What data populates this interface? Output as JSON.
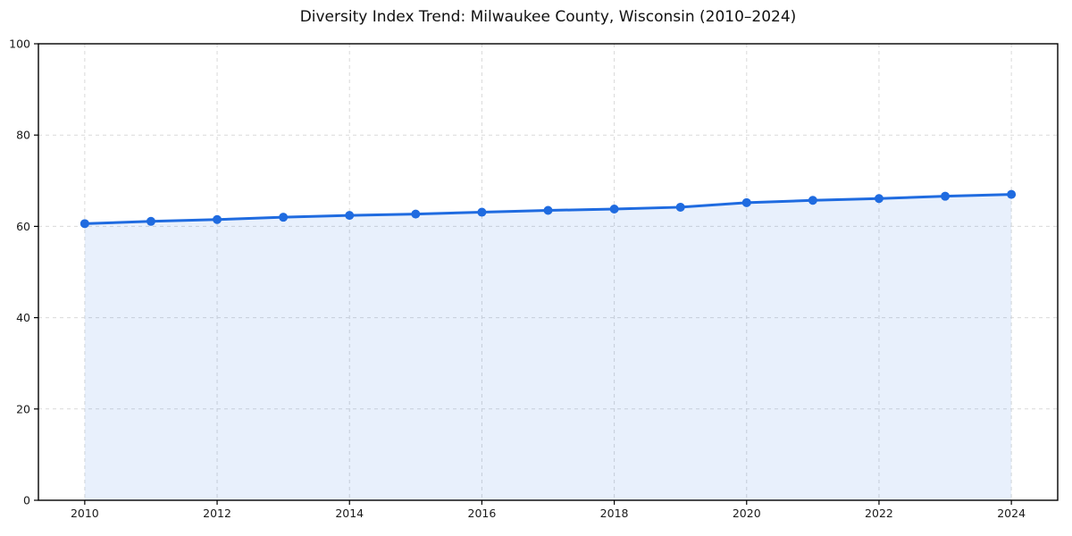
{
  "page": {
    "background": "#ffffff"
  },
  "chart_data": {
    "type": "area",
    "title": "Diversity Index Trend: Milwaukee County, Wisconsin (2010–2024)",
    "x": [
      2010,
      2011,
      2012,
      2013,
      2014,
      2015,
      2016,
      2017,
      2018,
      2019,
      2020,
      2021,
      2022,
      2023,
      2024
    ],
    "values": [
      60.6,
      61.1,
      61.5,
      62.0,
      62.4,
      62.7,
      63.1,
      63.5,
      63.8,
      64.2,
      65.2,
      65.7,
      66.1,
      66.6,
      67.0
    ],
    "xlabel": "",
    "ylabel": "",
    "xlim": [
      2009.3,
      2024.7
    ],
    "ylim": [
      0,
      100
    ],
    "xticks": [
      2010,
      2012,
      2014,
      2016,
      2018,
      2020,
      2022,
      2024
    ],
    "yticks": [
      0,
      20,
      40,
      60,
      80,
      100
    ],
    "grid": {
      "visible": true,
      "style": "dashed",
      "color": "#d9d9d9"
    },
    "legend": {
      "visible": false
    },
    "colors": {
      "line": "#1f6be0",
      "fill": "#1f6be0",
      "fill_opacity": 0.1,
      "marker": "#1f6be0",
      "axis": "#000000",
      "tick_label": "#1a1a1a",
      "title": "#111111"
    },
    "marker_radius": 5,
    "line_width": 3
  }
}
